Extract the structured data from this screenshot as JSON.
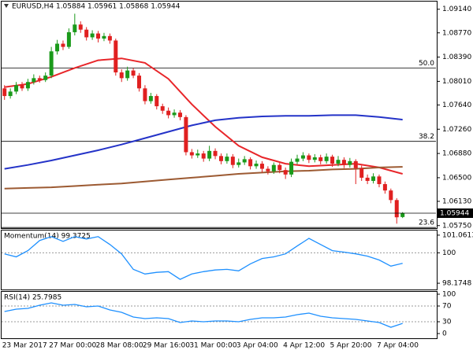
{
  "chart_data": [
    {
      "type": "candlestick",
      "title": "EURUSD,H4 1.05884 1.05961 1.05868 1.05944",
      "categories": [
        "23 Mar 2017",
        null,
        null,
        null,
        null,
        null,
        null,
        null,
        "27 Mar 00:00",
        null,
        null,
        null,
        null,
        null,
        null,
        null,
        "28 Mar 08:00",
        null,
        null,
        null,
        null,
        null,
        null,
        null,
        "29 Mar 16:00",
        null,
        null,
        null,
        null,
        null,
        null,
        null,
        "31 Mar 00:00",
        null,
        null,
        null,
        null,
        null,
        null,
        null,
        "3 Apr 04:00",
        null,
        null,
        null,
        null,
        null,
        null,
        null,
        "4 Apr 12:00",
        null,
        null,
        null,
        null,
        null,
        null,
        null,
        "5 Apr 20:00",
        null,
        null,
        null,
        null,
        null,
        null,
        null,
        "7 Apr 04:00",
        null,
        null,
        null,
        null
      ],
      "open": [
        1.079,
        1.0778,
        1.0785,
        1.0795,
        1.079,
        1.08,
        1.0806,
        1.0803,
        1.081,
        1.0848,
        1.086,
        1.0855,
        1.0878,
        1.089,
        1.0882,
        1.087,
        1.0876,
        1.0868,
        1.0872,
        1.0865,
        1.0815,
        1.0806,
        1.0818,
        1.081,
        1.079,
        1.077,
        1.0778,
        1.0762,
        1.0755,
        1.0748,
        1.0752,
        1.0745,
        1.069,
        1.0685,
        1.0688,
        1.068,
        1.0692,
        1.0684,
        1.0676,
        1.0683,
        1.067,
        1.0674,
        1.0679,
        1.0668,
        1.0672,
        1.0664,
        1.066,
        1.067,
        1.0662,
        1.0655,
        1.0675,
        1.068,
        1.0685,
        1.0678,
        1.0682,
        1.0676,
        1.0683,
        1.0672,
        1.0678,
        1.067,
        1.0676,
        1.0665,
        1.065,
        1.0645,
        1.0652,
        1.064,
        1.063,
        1.0615,
        1.05884
      ],
      "high": [
        1.0795,
        1.079,
        1.08,
        1.08,
        1.0805,
        1.0812,
        1.081,
        1.0815,
        1.0855,
        1.0866,
        1.0865,
        1.0884,
        1.0907,
        1.0895,
        1.0886,
        1.0881,
        1.088,
        1.0877,
        1.0876,
        1.0868,
        1.082,
        1.0824,
        1.0822,
        1.0814,
        1.0795,
        1.0783,
        1.0781,
        1.0766,
        1.076,
        1.0757,
        1.0756,
        1.0748,
        1.0695,
        1.0694,
        1.0692,
        1.07,
        1.0696,
        1.0688,
        1.0688,
        1.0687,
        1.068,
        1.0684,
        1.0682,
        1.0677,
        1.0676,
        1.0668,
        1.0674,
        1.0673,
        1.0666,
        1.068,
        1.0686,
        1.069,
        1.0688,
        1.0687,
        1.0686,
        1.0688,
        1.0686,
        1.0684,
        1.0682,
        1.0681,
        1.0679,
        1.0669,
        1.0655,
        1.0657,
        1.0655,
        1.0644,
        1.0633,
        1.0618,
        1.05961
      ],
      "low": [
        1.0772,
        1.0774,
        1.0781,
        1.0786,
        1.0786,
        1.0796,
        1.0799,
        1.08,
        1.0806,
        1.0843,
        1.085,
        1.0852,
        1.0873,
        1.0877,
        1.0865,
        1.0866,
        1.0862,
        1.0864,
        1.086,
        1.081,
        1.08,
        1.0802,
        1.0806,
        1.0785,
        1.0765,
        1.0766,
        1.0757,
        1.075,
        1.0743,
        1.0744,
        1.074,
        1.0685,
        1.068,
        1.0681,
        1.0675,
        1.0676,
        1.0679,
        1.0671,
        1.0672,
        1.0665,
        1.0666,
        1.067,
        1.0663,
        1.0664,
        1.0658,
        1.0655,
        1.0656,
        1.0657,
        1.0648,
        1.0651,
        1.0671,
        1.0676,
        1.0673,
        1.0674,
        1.0671,
        1.0672,
        1.0667,
        1.0668,
        1.0665,
        1.0666,
        1.064,
        1.0645,
        1.064,
        1.0641,
        1.0635,
        1.0625,
        1.061,
        1.0578,
        1.05868
      ],
      "close": [
        1.0778,
        1.0785,
        1.0795,
        1.079,
        1.08,
        1.0806,
        1.0803,
        1.081,
        1.0848,
        1.086,
        1.0855,
        1.0878,
        1.089,
        1.0882,
        1.087,
        1.0876,
        1.0868,
        1.0872,
        1.0865,
        1.0815,
        1.0806,
        1.0818,
        1.081,
        1.079,
        1.077,
        1.0778,
        1.0762,
        1.0755,
        1.0748,
        1.0752,
        1.0745,
        1.069,
        1.0685,
        1.0688,
        1.068,
        1.0692,
        1.0684,
        1.0676,
        1.0683,
        1.067,
        1.0674,
        1.0679,
        1.0668,
        1.0672,
        1.0664,
        1.066,
        1.067,
        1.0662,
        1.0655,
        1.0675,
        1.068,
        1.0685,
        1.0678,
        1.0682,
        1.0676,
        1.0683,
        1.0672,
        1.0678,
        1.067,
        1.0676,
        1.0665,
        1.065,
        1.0645,
        1.0652,
        1.064,
        1.063,
        1.0615,
        1.0588,
        1.05944
      ],
      "up_color": "#1a9a1a",
      "down_color": "#e02020",
      "series": [
        {
          "color": "#e8262a",
          "x": [
            0,
            4,
            8,
            12,
            16,
            20,
            24,
            28,
            32,
            36,
            40,
            44,
            48,
            52,
            56,
            60,
            64,
            68
          ],
          "values": [
            1.0792,
            1.0797,
            1.0808,
            1.0822,
            1.0834,
            1.0837,
            1.083,
            1.0805,
            1.0765,
            1.073,
            1.07,
            1.0682,
            1.0672,
            1.0668,
            1.067,
            1.0672,
            1.0666,
            1.0656
          ]
        },
        {
          "color": "#2433c8",
          "x": [
            0,
            4,
            8,
            12,
            16,
            20,
            24,
            28,
            32,
            36,
            40,
            44,
            48,
            52,
            56,
            60,
            64,
            68
          ],
          "values": [
            1.0664,
            1.067,
            1.0677,
            1.0685,
            1.0693,
            1.0702,
            1.0712,
            1.0722,
            1.0732,
            1.074,
            1.0744,
            1.0746,
            1.0747,
            1.0747,
            1.0748,
            1.0748,
            1.0745,
            1.0741
          ]
        },
        {
          "color": "#9c5a32",
          "x": [
            0,
            4,
            8,
            12,
            16,
            20,
            24,
            28,
            32,
            36,
            40,
            44,
            48,
            52,
            56,
            60,
            64,
            68
          ],
          "values": [
            1.0633,
            1.0634,
            1.0635,
            1.0637,
            1.0639,
            1.0641,
            1.0644,
            1.0647,
            1.065,
            1.0653,
            1.0656,
            1.0658,
            1.066,
            1.0661,
            1.0663,
            1.0664,
            1.0666,
            1.0667
          ]
        }
      ],
      "levels": [
        {
          "value": 1.0822,
          "label": "50.0"
        },
        {
          "value": 1.0707,
          "label": "38.2"
        },
        {
          "value": 1.0572,
          "label": "23.6"
        }
      ],
      "price_marker": {
        "value": 1.05944,
        "label": "1.05944"
      },
      "xlim": [
        -0.5,
        73.7
      ],
      "ylim": [
        1.0571,
        1.0926
      ],
      "yticks": [
        {
          "value": 1.0914,
          "label": "1.09140"
        },
        {
          "value": 1.0877,
          "label": "1.08770"
        },
        {
          "value": 1.0839,
          "label": "1.08390"
        },
        {
          "value": 1.0801,
          "label": "1.08010"
        },
        {
          "value": 1.0764,
          "label": "1.07640"
        },
        {
          "value": 1.0726,
          "label": "1.07260"
        },
        {
          "value": 1.0688,
          "label": "1.06880"
        },
        {
          "value": 1.065,
          "label": "1.06500"
        },
        {
          "value": 1.0613,
          "label": "1.06130"
        },
        {
          "value": 1.0575,
          "label": "1.05750"
        }
      ]
    },
    {
      "type": "line",
      "title": "Momentum(14) 99.3725",
      "color": "#1e90ff",
      "x": [
        0,
        2,
        4,
        6,
        8,
        10,
        12,
        14,
        16,
        18,
        20,
        22,
        24,
        26,
        28,
        30,
        32,
        34,
        36,
        38,
        40,
        42,
        44,
        46,
        48,
        50,
        52,
        54,
        56,
        58,
        60,
        62,
        64,
        66,
        68
      ],
      "values": [
        99.94,
        99.76,
        100.13,
        100.74,
        100.97,
        100.69,
        100.97,
        100.83,
        100.97,
        100.5,
        99.94,
        99.01,
        98.73,
        98.83,
        98.87,
        98.41,
        98.73,
        98.87,
        98.97,
        99.01,
        98.92,
        99.34,
        99.66,
        99.76,
        99.94,
        100.41,
        100.87,
        100.5,
        100.13,
        100.04,
        99.94,
        99.8,
        99.57,
        99.2,
        99.37
      ],
      "xlim": [
        -0.5,
        73.7
      ],
      "ylim": [
        97.8,
        101.34
      ],
      "yticks": [
        101.0613,
        100,
        98.1748
      ],
      "reference_lines": [
        100
      ]
    },
    {
      "type": "line",
      "title": "RSI(14) 25.7985",
      "color": "#1e90ff",
      "x": [
        0,
        2,
        4,
        6,
        8,
        10,
        12,
        14,
        16,
        18,
        20,
        22,
        24,
        26,
        28,
        30,
        32,
        34,
        36,
        38,
        40,
        42,
        44,
        46,
        48,
        50,
        52,
        54,
        56,
        58,
        60,
        62,
        64,
        66,
        68
      ],
      "values": [
        56,
        62,
        64,
        72,
        78,
        72,
        74,
        68,
        70,
        60,
        54,
        42,
        38,
        40,
        38,
        28,
        32,
        30,
        32,
        32,
        30,
        36,
        40,
        40,
        42,
        48,
        52,
        44,
        40,
        38,
        36,
        32,
        28,
        16,
        25.8
      ],
      "xlim": [
        -0.5,
        73.7
      ],
      "ylim": [
        -12,
        106
      ],
      "yticks": [
        100,
        70,
        30,
        0
      ],
      "reference_lines": [
        70,
        30
      ]
    }
  ]
}
